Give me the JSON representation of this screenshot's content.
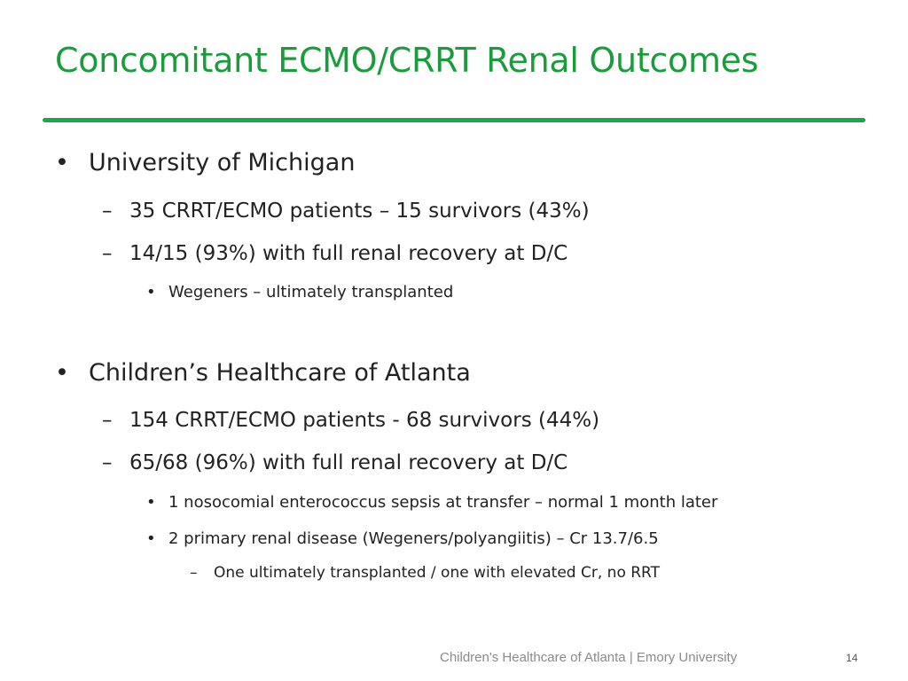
{
  "slide": {
    "title": "Concomitant ECMO/CRRT Renal Outcomes",
    "accent_color": "#1aa64a",
    "bullet_glyph": "•",
    "dash_glyph": "–",
    "sections": [
      {
        "heading": "University of Michigan",
        "points": [
          "35 CRRT/ECMO patients – 15 survivors (43%)",
          "14/15 (93%) with full renal recovery at D/C"
        ],
        "subpoints": [
          "Wegeners – ultimately transplanted"
        ]
      },
      {
        "heading": "Children’s Healthcare of Atlanta",
        "points": [
          "154 CRRT/ECMO patients - 68 survivors (44%)",
          "65/68 (96%) with full renal recovery at D/C"
        ],
        "subpoints": [
          "1 nosocomial enterococcus sepsis at transfer – normal 1 month later",
          "2 primary renal disease (Wegeners/polyangiitis) – Cr 13.7/6.5"
        ],
        "subsubpoints": [
          "One ultimately transplanted / one with elevated Cr, no RRT"
        ]
      }
    ]
  },
  "footer": {
    "text": "Children's Healthcare of Atlanta | Emory University",
    "page_number": "14"
  }
}
